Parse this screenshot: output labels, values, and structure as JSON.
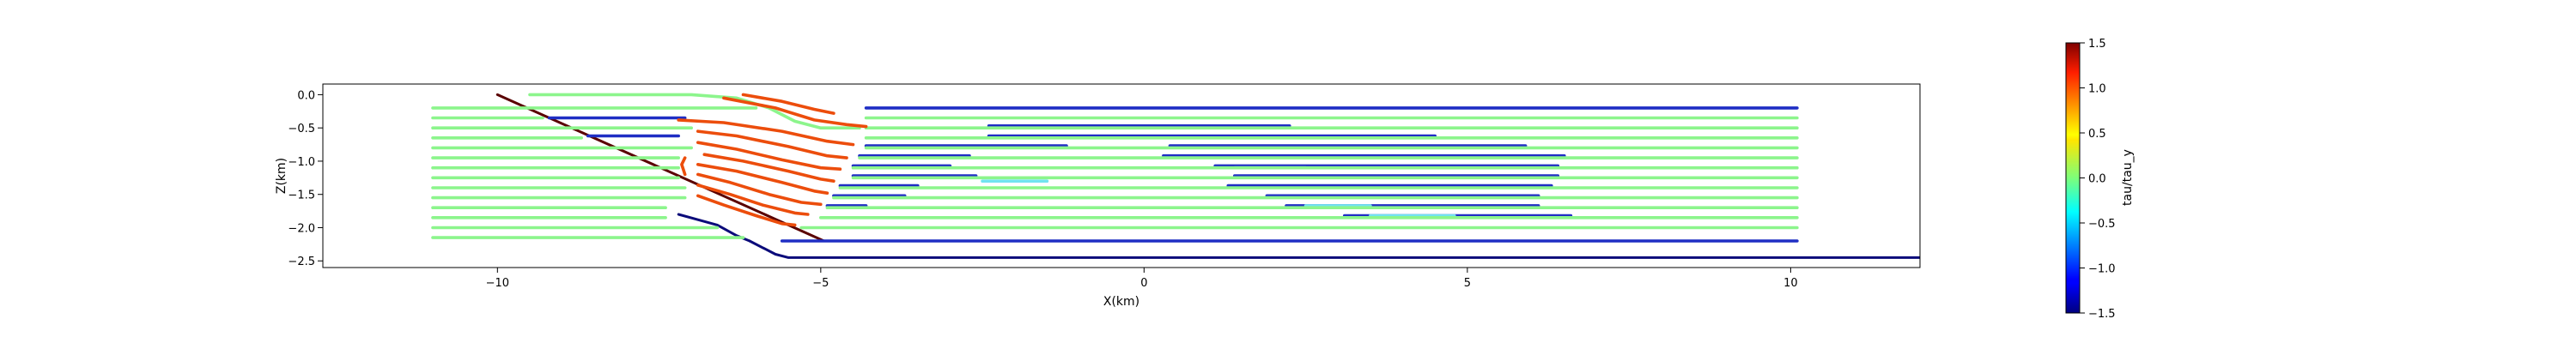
{
  "chart_data": {
    "type": "line",
    "title": "",
    "xlabel": "X(km)",
    "ylabel": "Z(km)",
    "xlim": [
      -12.7,
      12.0
    ],
    "ylim": [
      -2.6,
      0.16
    ],
    "xticks": [
      -10,
      -5,
      0,
      5,
      10
    ],
    "xtick_labels": [
      "−10",
      "−5",
      "0",
      "5",
      "10"
    ],
    "yticks": [
      0.0,
      -0.5,
      -1.0,
      -1.5,
      -2.0,
      -2.5
    ],
    "ytick_labels": [
      "0.0",
      "−0.5",
      "−1.0",
      "−1.5",
      "−2.0",
      "−2.5"
    ],
    "colorbar": {
      "label": "tau/tau_y",
      "vmin": -1.5,
      "vmax": 1.5,
      "colormap": "jet",
      "ticks": [
        1.5,
        1.0,
        0.5,
        0.0,
        -0.5,
        -1.0,
        -1.5
      ],
      "tick_labels": [
        "1.5",
        "1.0",
        "0.5",
        "0.0",
        "−0.5",
        "−1.0",
        "−1.5"
      ]
    },
    "colors": {
      "green": "#8cf58c",
      "orange": "#ec4d0c",
      "blue": "#1f2ec4",
      "navy": "#0b0b7a",
      "cyan": "#71e3f0",
      "maroon": "#5a0000"
    },
    "series": [
      {
        "color": "maroon",
        "points": [
          [
            -10.0,
            0.0
          ],
          [
            -4.95,
            -2.2
          ]
        ]
      },
      {
        "color": "navy",
        "points": [
          [
            -6.1,
            -2.2
          ],
          [
            -5.7,
            -2.4
          ],
          [
            -5.5,
            -2.45
          ],
          [
            12.0,
            -2.45
          ]
        ]
      },
      {
        "color": "navy",
        "points": [
          [
            -7.2,
            -1.8
          ],
          [
            -6.6,
            -1.96
          ],
          [
            -6.3,
            -2.12
          ],
          [
            -6.1,
            -2.2
          ]
        ]
      },
      {
        "color": "blue",
        "points": [
          [
            -5.6,
            -2.2
          ],
          [
            10.1,
            -2.2
          ]
        ]
      },
      {
        "color": "blue",
        "points": [
          [
            -4.3,
            -0.2
          ],
          [
            10.1,
            -0.2
          ]
        ]
      },
      {
        "color": "blue",
        "points": [
          [
            -9.2,
            -0.35
          ],
          [
            -7.1,
            -0.35
          ]
        ]
      },
      {
        "color": "blue",
        "points": [
          [
            -2.4,
            -0.47
          ],
          [
            2.25,
            -0.47
          ]
        ]
      },
      {
        "color": "blue",
        "points": [
          [
            -8.6,
            -0.62
          ],
          [
            -7.2,
            -0.62
          ]
        ]
      },
      {
        "color": "blue",
        "points": [
          [
            -2.4,
            -0.62
          ],
          [
            4.5,
            -0.62
          ]
        ]
      },
      {
        "color": "blue",
        "points": [
          [
            -4.3,
            -0.77
          ],
          [
            -1.2,
            -0.77
          ]
        ]
      },
      {
        "color": "blue",
        "points": [
          [
            0.4,
            -0.77
          ],
          [
            5.9,
            -0.77
          ]
        ]
      },
      {
        "color": "blue",
        "points": [
          [
            -4.4,
            -0.92
          ],
          [
            -2.7,
            -0.92
          ]
        ]
      },
      {
        "color": "blue",
        "points": [
          [
            0.3,
            -0.92
          ],
          [
            6.5,
            -0.92
          ]
        ]
      },
      {
        "color": "blue",
        "points": [
          [
            -4.5,
            -1.07
          ],
          [
            -3.0,
            -1.07
          ]
        ]
      },
      {
        "color": "blue",
        "points": [
          [
            1.1,
            -1.07
          ],
          [
            6.4,
            -1.07
          ]
        ]
      },
      {
        "color": "blue",
        "points": [
          [
            -4.5,
            -1.22
          ],
          [
            -2.6,
            -1.22
          ]
        ]
      },
      {
        "color": "blue",
        "points": [
          [
            1.4,
            -1.22
          ],
          [
            6.4,
            -1.22
          ]
        ]
      },
      {
        "color": "blue",
        "points": [
          [
            -4.7,
            -1.37
          ],
          [
            -3.5,
            -1.37
          ]
        ]
      },
      {
        "color": "blue",
        "points": [
          [
            1.3,
            -1.37
          ],
          [
            6.3,
            -1.37
          ]
        ]
      },
      {
        "color": "blue",
        "points": [
          [
            -4.8,
            -1.52
          ],
          [
            -3.7,
            -1.52
          ]
        ]
      },
      {
        "color": "blue",
        "points": [
          [
            1.9,
            -1.52
          ],
          [
            6.1,
            -1.52
          ]
        ]
      },
      {
        "color": "blue",
        "points": [
          [
            -4.9,
            -1.67
          ],
          [
            -4.3,
            -1.67
          ]
        ]
      },
      {
        "color": "blue",
        "points": [
          [
            2.2,
            -1.67
          ],
          [
            6.1,
            -1.67
          ]
        ]
      },
      {
        "color": "blue",
        "points": [
          [
            3.1,
            -1.82
          ],
          [
            6.6,
            -1.82
          ]
        ]
      },
      {
        "color": "cyan",
        "points": [
          [
            -2.5,
            -1.3
          ],
          [
            -1.5,
            -1.3
          ]
        ]
      },
      {
        "color": "cyan",
        "points": [
          [
            1.4,
            -1.1
          ],
          [
            2.5,
            -1.1
          ]
        ]
      },
      {
        "color": "cyan",
        "points": [
          [
            3.5,
            -1.82
          ],
          [
            4.8,
            -1.82
          ]
        ]
      },
      {
        "color": "cyan",
        "points": [
          [
            2.5,
            -1.67
          ],
          [
            3.5,
            -1.67
          ]
        ]
      },
      {
        "color": "green",
        "points": [
          [
            -11.0,
            -0.2
          ],
          [
            -6.0,
            -0.2
          ]
        ]
      },
      {
        "color": "green",
        "points": [
          [
            -11.0,
            -0.35
          ],
          [
            -9.3,
            -0.35
          ]
        ]
      },
      {
        "color": "green",
        "points": [
          [
            -11.0,
            -0.5
          ],
          [
            -7.0,
            -0.5
          ]
        ]
      },
      {
        "color": "green",
        "points": [
          [
            -11.0,
            -0.65
          ],
          [
            -8.7,
            -0.65
          ]
        ]
      },
      {
        "color": "green",
        "points": [
          [
            -11.0,
            -0.8
          ],
          [
            -7.0,
            -0.8
          ]
        ]
      },
      {
        "color": "green",
        "points": [
          [
            -11.0,
            -0.95
          ],
          [
            -7.2,
            -0.95
          ]
        ]
      },
      {
        "color": "green",
        "points": [
          [
            -11.0,
            -1.1
          ],
          [
            -7.2,
            -1.1
          ]
        ]
      },
      {
        "color": "green",
        "points": [
          [
            -11.0,
            -1.25
          ],
          [
            -7.2,
            -1.25
          ]
        ]
      },
      {
        "color": "green",
        "points": [
          [
            -11.0,
            -1.4
          ],
          [
            -7.1,
            -1.4
          ]
        ]
      },
      {
        "color": "green",
        "points": [
          [
            -11.0,
            -1.55
          ],
          [
            -7.1,
            -1.55
          ]
        ]
      },
      {
        "color": "green",
        "points": [
          [
            -11.0,
            -1.7
          ],
          [
            -7.4,
            -1.7
          ]
        ]
      },
      {
        "color": "green",
        "points": [
          [
            -11.0,
            -1.85
          ],
          [
            -7.4,
            -1.85
          ]
        ]
      },
      {
        "color": "green",
        "points": [
          [
            -11.0,
            -2.0
          ],
          [
            -6.6,
            -2.0
          ]
        ]
      },
      {
        "color": "green",
        "points": [
          [
            -11.0,
            -2.15
          ],
          [
            -6.2,
            -2.15
          ]
        ]
      },
      {
        "color": "green",
        "points": [
          [
            -9.5,
            0.0
          ],
          [
            -7.0,
            0.0
          ],
          [
            -6.3,
            -0.05
          ],
          [
            -5.8,
            -0.2
          ],
          [
            -5.4,
            -0.4
          ],
          [
            -5.0,
            -0.5
          ],
          [
            -4.4,
            -0.5
          ]
        ]
      },
      {
        "color": "green",
        "points": [
          [
            -4.3,
            -0.35
          ],
          [
            10.1,
            -0.35
          ]
        ]
      },
      {
        "color": "green",
        "points": [
          [
            -4.3,
            -0.5
          ],
          [
            10.1,
            -0.5
          ]
        ]
      },
      {
        "color": "green",
        "points": [
          [
            -4.3,
            -0.65
          ],
          [
            10.1,
            -0.65
          ]
        ]
      },
      {
        "color": "green",
        "points": [
          [
            -4.3,
            -0.8
          ],
          [
            10.1,
            -0.8
          ]
        ]
      },
      {
        "color": "green",
        "points": [
          [
            -4.4,
            -0.95
          ],
          [
            10.1,
            -0.95
          ]
        ]
      },
      {
        "color": "green",
        "points": [
          [
            -4.5,
            -1.1
          ],
          [
            10.1,
            -1.1
          ]
        ]
      },
      {
        "color": "green",
        "points": [
          [
            -4.5,
            -1.25
          ],
          [
            10.1,
            -1.25
          ]
        ]
      },
      {
        "color": "green",
        "points": [
          [
            -4.7,
            -1.4
          ],
          [
            10.1,
            -1.4
          ]
        ]
      },
      {
        "color": "green",
        "points": [
          [
            -4.8,
            -1.55
          ],
          [
            10.1,
            -1.55
          ]
        ]
      },
      {
        "color": "green",
        "points": [
          [
            -4.9,
            -1.7
          ],
          [
            10.1,
            -1.7
          ]
        ]
      },
      {
        "color": "green",
        "points": [
          [
            -5.0,
            -1.85
          ],
          [
            10.1,
            -1.85
          ]
        ]
      },
      {
        "color": "green",
        "points": [
          [
            -5.3,
            -2.0
          ],
          [
            10.1,
            -2.0
          ]
        ]
      },
      {
        "color": "orange",
        "points": [
          [
            -6.2,
            0.0
          ],
          [
            -5.6,
            -0.1
          ],
          [
            -5.1,
            -0.22
          ],
          [
            -4.8,
            -0.28
          ]
        ]
      },
      {
        "color": "orange",
        "points": [
          [
            -6.5,
            -0.05
          ],
          [
            -5.7,
            -0.2
          ],
          [
            -5.1,
            -0.38
          ],
          [
            -4.6,
            -0.45
          ],
          [
            -4.3,
            -0.48
          ]
        ]
      },
      {
        "color": "orange",
        "points": [
          [
            -7.2,
            -0.38
          ],
          [
            -6.5,
            -0.42
          ],
          [
            -5.6,
            -0.55
          ],
          [
            -4.9,
            -0.7
          ],
          [
            -4.5,
            -0.75
          ]
        ]
      },
      {
        "color": "orange",
        "points": [
          [
            -6.9,
            -0.55
          ],
          [
            -6.3,
            -0.62
          ],
          [
            -5.5,
            -0.78
          ],
          [
            -4.9,
            -0.92
          ],
          [
            -4.6,
            -0.95
          ]
        ]
      },
      {
        "color": "orange",
        "points": [
          [
            -6.9,
            -0.72
          ],
          [
            -6.3,
            -0.82
          ],
          [
            -5.6,
            -0.98
          ],
          [
            -5.0,
            -1.1
          ],
          [
            -4.7,
            -1.12
          ]
        ]
      },
      {
        "color": "orange",
        "points": [
          [
            -6.8,
            -0.9
          ],
          [
            -6.2,
            -1.0
          ],
          [
            -5.5,
            -1.15
          ],
          [
            -5.0,
            -1.27
          ],
          [
            -4.8,
            -1.3
          ]
        ]
      },
      {
        "color": "orange",
        "points": [
          [
            -6.9,
            -1.05
          ],
          [
            -6.3,
            -1.15
          ],
          [
            -5.6,
            -1.32
          ],
          [
            -5.1,
            -1.45
          ],
          [
            -4.9,
            -1.48
          ]
        ]
      },
      {
        "color": "orange",
        "points": [
          [
            -6.9,
            -1.2
          ],
          [
            -6.4,
            -1.32
          ],
          [
            -5.8,
            -1.5
          ],
          [
            -5.3,
            -1.62
          ],
          [
            -5.0,
            -1.65
          ]
        ]
      },
      {
        "color": "orange",
        "points": [
          [
            -6.9,
            -1.36
          ],
          [
            -6.4,
            -1.5
          ],
          [
            -5.9,
            -1.66
          ],
          [
            -5.4,
            -1.78
          ],
          [
            -5.2,
            -1.8
          ]
        ]
      },
      {
        "color": "orange",
        "points": [
          [
            -6.9,
            -1.52
          ],
          [
            -6.5,
            -1.66
          ],
          [
            -6.0,
            -1.82
          ],
          [
            -5.6,
            -1.94
          ],
          [
            -5.4,
            -1.96
          ]
        ]
      },
      {
        "color": "orange",
        "points": [
          [
            -7.1,
            -0.95
          ],
          [
            -7.15,
            -1.05
          ],
          [
            -7.1,
            -1.2
          ]
        ]
      }
    ]
  }
}
